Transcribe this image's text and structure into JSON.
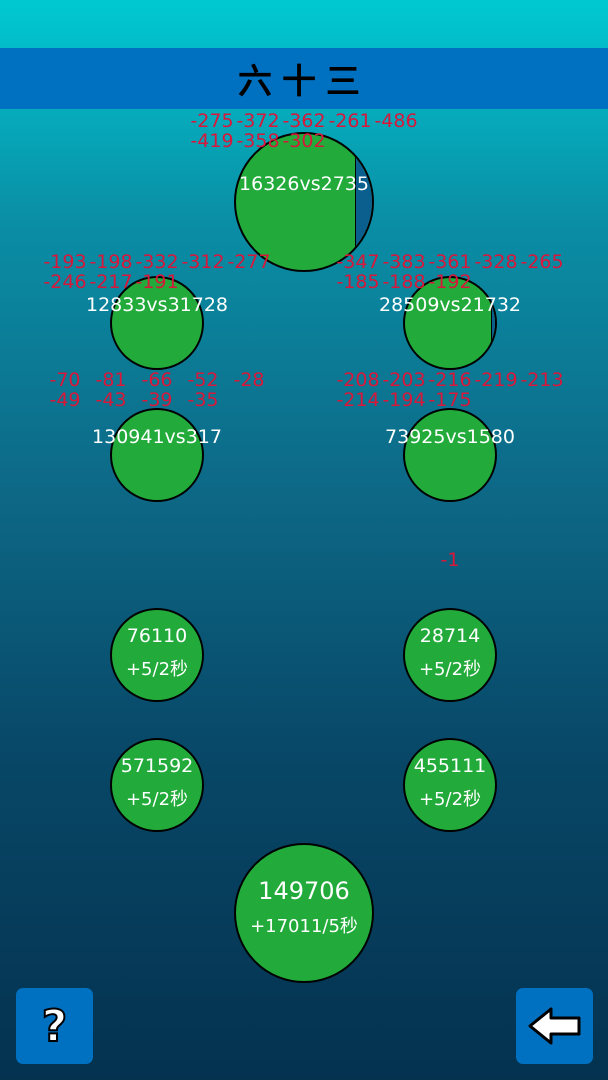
{
  "title": "六十三",
  "battles": [
    {
      "label": "16326vs2735",
      "damage": [
        "-275",
        "-372",
        "-362",
        "-261",
        "-486",
        "-419",
        "-358",
        "-302"
      ],
      "enemy_fraction": 0.12
    },
    {
      "label": "12833vs31728",
      "damage": [
        "-193",
        "-198",
        "-332",
        "-312",
        "-277",
        "-246",
        "-217",
        "-191"
      ],
      "enemy_fraction": 0
    },
    {
      "label": "28509vs21732",
      "damage": [
        "-347",
        "-383",
        "-361",
        "-328",
        "-265",
        "-185",
        "-188",
        "-192"
      ],
      "enemy_fraction": 0.03
    },
    {
      "label": "130941vs317",
      "damage": [
        "-70",
        "-81",
        "-66",
        "-52",
        "-28",
        "-49",
        "-43",
        "-39",
        "-35"
      ],
      "enemy_fraction": 0
    },
    {
      "label": "73925vs1580",
      "damage": [
        "-208",
        "-203",
        "-216",
        "-219",
        "-213",
        "-214",
        "-194",
        "-175"
      ],
      "enemy_fraction": 0
    }
  ],
  "floating_damage": "-1",
  "resources": [
    {
      "value": "76110",
      "rate": "+5/2秒"
    },
    {
      "value": "28714",
      "rate": "+5/2秒"
    },
    {
      "value": "571592",
      "rate": "+5/2秒"
    },
    {
      "value": "455111",
      "rate": "+5/2秒"
    }
  ],
  "main_resource": {
    "value": "149706",
    "rate": "+17011/5秒"
  },
  "buttons": {
    "help": "?",
    "back": "back-arrow-icon"
  },
  "colors": {
    "circle": "#22ab3a",
    "damage": "#d8173a",
    "titlebar": "#0070c0",
    "enemy_bar": "#0b5f8e"
  }
}
